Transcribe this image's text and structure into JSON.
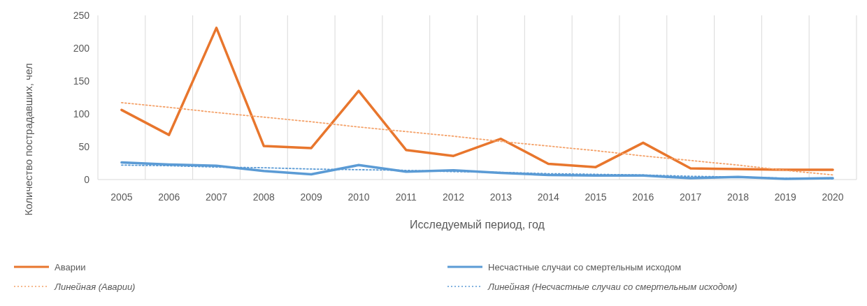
{
  "chart_data": {
    "type": "line",
    "xlabel": "Исследуемый период, год",
    "ylabel": "Количество пострадавших, чел",
    "categories": [
      "2005",
      "2006",
      "2007",
      "2008",
      "2009",
      "2010",
      "2011",
      "2012",
      "2013",
      "2014",
      "2015",
      "2016",
      "2017",
      "2018",
      "2019",
      "2020"
    ],
    "series": [
      {
        "name": "Аварии",
        "color": "#e8762d",
        "values": [
          106,
          68,
          231,
          51,
          48,
          135,
          45,
          36,
          62,
          24,
          19,
          56,
          17,
          16,
          15,
          15
        ]
      },
      {
        "name": "Несчастные случаи со смертельным исходом",
        "color": "#5b9bd5",
        "values": [
          26,
          23,
          21,
          13,
          8,
          22,
          12,
          14,
          10,
          7,
          6,
          6,
          2,
          4,
          1,
          2
        ]
      },
      {
        "name": "Линейная (Аварии)",
        "color": "#f4a26a",
        "values": [
          117,
          110,
          102,
          95,
          88,
          80,
          73,
          66,
          58,
          51,
          44,
          36,
          29,
          22,
          14,
          7
        ],
        "line_style": "dotted"
      },
      {
        "name": "Линейная (Несчастные случаи со смертельным исходом)",
        "color": "#5b9bd5",
        "values": [
          22,
          21,
          19,
          18,
          16,
          15,
          14,
          12,
          11,
          9,
          8,
          7,
          5,
          4,
          2,
          1
        ],
        "line_style": "dotted"
      }
    ],
    "ylim": [
      0,
      250
    ],
    "yticks": [
      0,
      50,
      100,
      150,
      200,
      250
    ],
    "grid": "x",
    "legend": "bottom"
  }
}
